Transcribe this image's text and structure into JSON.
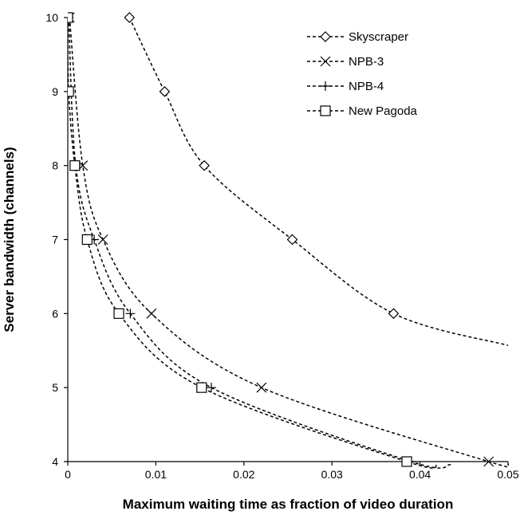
{
  "chart_data": {
    "type": "line",
    "xlabel": "Maximum waiting time as fraction of video duration",
    "ylabel": "Server bandwidth (channels)",
    "xlim": [
      0,
      0.05
    ],
    "ylim": [
      4,
      10
    ],
    "x_ticks": [
      "0",
      "0.01",
      "0.02",
      "0.03",
      "0.04",
      "0.05"
    ],
    "y_ticks": [
      "4",
      "5",
      "6",
      "7",
      "8",
      "9",
      "10"
    ],
    "grid": false,
    "legend_position": "top-right",
    "series": [
      {
        "name": "Skyscraper",
        "marker": "diamond",
        "x": [
          0.007,
          0.011,
          0.0155,
          0.0255,
          0.037,
          0.05
        ],
        "y": [
          10,
          9,
          8,
          7,
          6,
          5.57
        ],
        "marker_count": 5
      },
      {
        "name": "NPB-3",
        "marker": "x",
        "x": [
          0.0002,
          0.0017,
          0.004,
          0.0095,
          0.022,
          0.0478,
          0.05
        ],
        "y": [
          10,
          8,
          7,
          6,
          5,
          4,
          3.97
        ],
        "marker_count": 6
      },
      {
        "name": "NPB-4",
        "marker": "plus",
        "x": [
          0.0001,
          0.0009,
          0.003,
          0.0071,
          0.0163,
          0.039,
          0.0435
        ],
        "y": [
          10,
          8,
          7,
          6,
          5,
          4,
          3.96
        ],
        "marker_count": 6
      },
      {
        "name": "New Pagoda",
        "marker": "square",
        "x": [
          0.0,
          0.0001,
          0.0008,
          0.0022,
          0.0058,
          0.0152,
          0.0385,
          0.042
        ],
        "y": [
          10,
          9,
          8,
          7,
          6,
          5,
          4,
          3.96
        ],
        "marker_count": 7
      }
    ]
  }
}
